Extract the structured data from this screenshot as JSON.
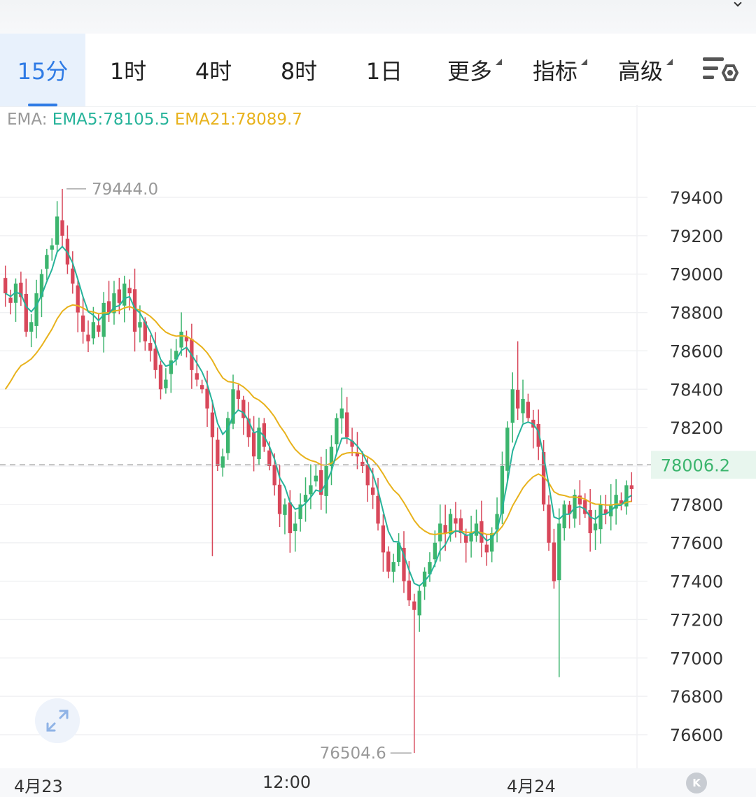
{
  "tabs": [
    {
      "label": "15分",
      "active": true
    },
    {
      "label": "1时",
      "active": false
    },
    {
      "label": "4时",
      "active": false
    },
    {
      "label": "8时",
      "active": false
    },
    {
      "label": "1日",
      "active": false
    },
    {
      "label": "更多",
      "active": false,
      "dropdown": true
    },
    {
      "label": "指标",
      "active": false,
      "dropdown": true
    },
    {
      "label": "高级",
      "active": false,
      "dropdown": true
    }
  ],
  "legend": {
    "label": "EMA:",
    "ema5": "EMA5:78105.5",
    "ema21": "EMA21:78089.7"
  },
  "icons": {
    "settings": "chart-settings-icon",
    "expand": "expand-arrows-icon",
    "badge": "k-badge"
  },
  "badge_text": "K",
  "chart_data": {
    "type": "candlestick",
    "y_ticks": [
      79400,
      79200,
      79000,
      78800,
      78600,
      78400,
      78200,
      78000,
      77800,
      77600,
      77400,
      77200,
      77000,
      76800,
      76600
    ],
    "y_range": [
      76450,
      79620
    ],
    "x_ticks": [
      "4月23",
      "12:00",
      "4月24"
    ],
    "current_price": 78006.2,
    "current_price_label": "78006.2",
    "high_marker": {
      "value": 79444.0,
      "label": "79444.0"
    },
    "low_marker": {
      "value": 76504.6,
      "label": "76504.6"
    },
    "colors": {
      "up": "#3cb56e",
      "down": "#d8475a",
      "ema5": "#26b39a",
      "ema21": "#e8b21c"
    },
    "grid": true,
    "closes": [
      78900,
      78850,
      78950,
      78880,
      78700,
      78750,
      78900,
      79000,
      79100,
      79150,
      79300,
      79200,
      79050,
      78950,
      78800,
      78700,
      78650,
      78750,
      78700,
      78850,
      78800,
      78900,
      78850,
      78950,
      78900,
      78700,
      78750,
      78650,
      78600,
      78500,
      78400,
      78450,
      78550,
      78600,
      78700,
      78650,
      78500,
      78450,
      78400,
      78300,
      78150,
      78000,
      78050,
      78250,
      78400,
      78350,
      78250,
      78150,
      78050,
      78200,
      78100,
      78000,
      77900,
      77750,
      77800,
      77650,
      77700,
      77800,
      77850,
      77900,
      77950,
      77850,
      78000,
      78100,
      78250,
      78300,
      78150,
      78100,
      78050,
      78000,
      77900,
      77850,
      77700,
      77550,
      77450,
      77500,
      77600,
      77400,
      77300,
      77250,
      77350,
      77450,
      77500,
      77600,
      77700,
      77650,
      77750,
      77700,
      77650,
      77600,
      77650,
      77700,
      77600,
      77550,
      77650,
      77750,
      78000,
      78200,
      78400,
      78300,
      78350,
      78250,
      78200,
      78100,
      77800,
      77600,
      77400,
      77700,
      77800,
      77750,
      77850,
      77800,
      77750,
      77650,
      77700,
      77800,
      77750,
      77800,
      77850,
      77800,
      77900,
      77880
    ]
  }
}
